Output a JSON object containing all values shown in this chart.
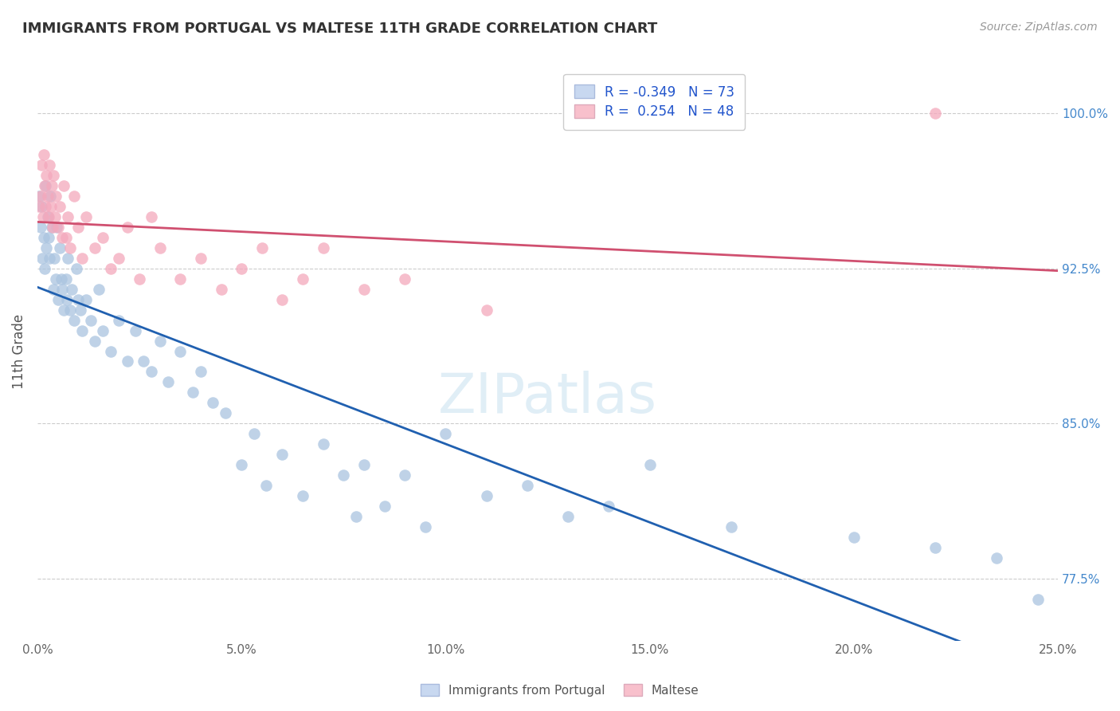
{
  "title": "IMMIGRANTS FROM PORTUGAL VS MALTESE 11TH GRADE CORRELATION CHART",
  "source": "Source: ZipAtlas.com",
  "ylabel": "11th Grade",
  "xlim": [
    0.0,
    25.0
  ],
  "ylim": [
    74.5,
    102.5
  ],
  "yticks": [
    77.5,
    85.0,
    92.5,
    100.0
  ],
  "xticks": [
    0.0,
    5.0,
    10.0,
    15.0,
    20.0,
    25.0
  ],
  "blue_R": -0.349,
  "blue_N": 73,
  "pink_R": 0.254,
  "pink_N": 48,
  "blue_color": "#aac4e0",
  "pink_color": "#f4a8bc",
  "blue_line_color": "#2060b0",
  "pink_line_color": "#d05070",
  "legend_blue_label": "Immigrants from Portugal",
  "legend_pink_label": "Maltese",
  "watermark": "ZIPatlas",
  "blue_x": [
    0.05,
    0.08,
    0.1,
    0.12,
    0.15,
    0.18,
    0.2,
    0.22,
    0.25,
    0.28,
    0.3,
    0.32,
    0.35,
    0.4,
    0.42,
    0.45,
    0.48,
    0.5,
    0.55,
    0.58,
    0.6,
    0.65,
    0.7,
    0.72,
    0.75,
    0.8,
    0.85,
    0.9,
    0.95,
    1.0,
    1.05,
    1.1,
    1.2,
    1.3,
    1.4,
    1.5,
    1.6,
    1.8,
    2.0,
    2.2,
    2.4,
    2.6,
    2.8,
    3.0,
    3.2,
    3.5,
    3.8,
    4.0,
    4.3,
    4.6,
    5.0,
    5.3,
    5.6,
    6.0,
    6.5,
    7.0,
    7.5,
    7.8,
    8.0,
    8.5,
    9.0,
    9.5,
    10.0,
    11.0,
    12.0,
    13.0,
    14.0,
    15.0,
    17.0,
    20.0,
    22.0,
    23.5,
    24.5
  ],
  "blue_y": [
    96.0,
    94.5,
    95.5,
    93.0,
    94.0,
    92.5,
    96.5,
    93.5,
    95.0,
    94.0,
    93.0,
    96.0,
    94.5,
    91.5,
    93.0,
    92.0,
    94.5,
    91.0,
    93.5,
    92.0,
    91.5,
    90.5,
    92.0,
    91.0,
    93.0,
    90.5,
    91.5,
    90.0,
    92.5,
    91.0,
    90.5,
    89.5,
    91.0,
    90.0,
    89.0,
    91.5,
    89.5,
    88.5,
    90.0,
    88.0,
    89.5,
    88.0,
    87.5,
    89.0,
    87.0,
    88.5,
    86.5,
    87.5,
    86.0,
    85.5,
    83.0,
    84.5,
    82.0,
    83.5,
    81.5,
    84.0,
    82.5,
    80.5,
    83.0,
    81.0,
    82.5,
    80.0,
    84.5,
    81.5,
    82.0,
    80.5,
    81.0,
    83.0,
    80.0,
    79.5,
    79.0,
    78.5,
    76.5
  ],
  "pink_x": [
    0.05,
    0.08,
    0.1,
    0.13,
    0.15,
    0.18,
    0.2,
    0.22,
    0.25,
    0.28,
    0.3,
    0.33,
    0.35,
    0.38,
    0.4,
    0.43,
    0.45,
    0.5,
    0.55,
    0.6,
    0.65,
    0.7,
    0.75,
    0.8,
    0.9,
    1.0,
    1.1,
    1.2,
    1.4,
    1.6,
    1.8,
    2.0,
    2.2,
    2.5,
    2.8,
    3.0,
    3.5,
    4.0,
    4.5,
    5.0,
    5.5,
    6.0,
    6.5,
    7.0,
    8.0,
    9.0,
    11.0,
    22.0
  ],
  "pink_y": [
    95.5,
    96.0,
    97.5,
    95.0,
    98.0,
    96.5,
    95.5,
    97.0,
    96.0,
    95.0,
    97.5,
    95.5,
    96.5,
    94.5,
    97.0,
    95.0,
    96.0,
    94.5,
    95.5,
    94.0,
    96.5,
    94.0,
    95.0,
    93.5,
    96.0,
    94.5,
    93.0,
    95.0,
    93.5,
    94.0,
    92.5,
    93.0,
    94.5,
    92.0,
    95.0,
    93.5,
    92.0,
    93.0,
    91.5,
    92.5,
    93.5,
    91.0,
    92.0,
    93.5,
    91.5,
    92.0,
    90.5,
    100.0
  ]
}
